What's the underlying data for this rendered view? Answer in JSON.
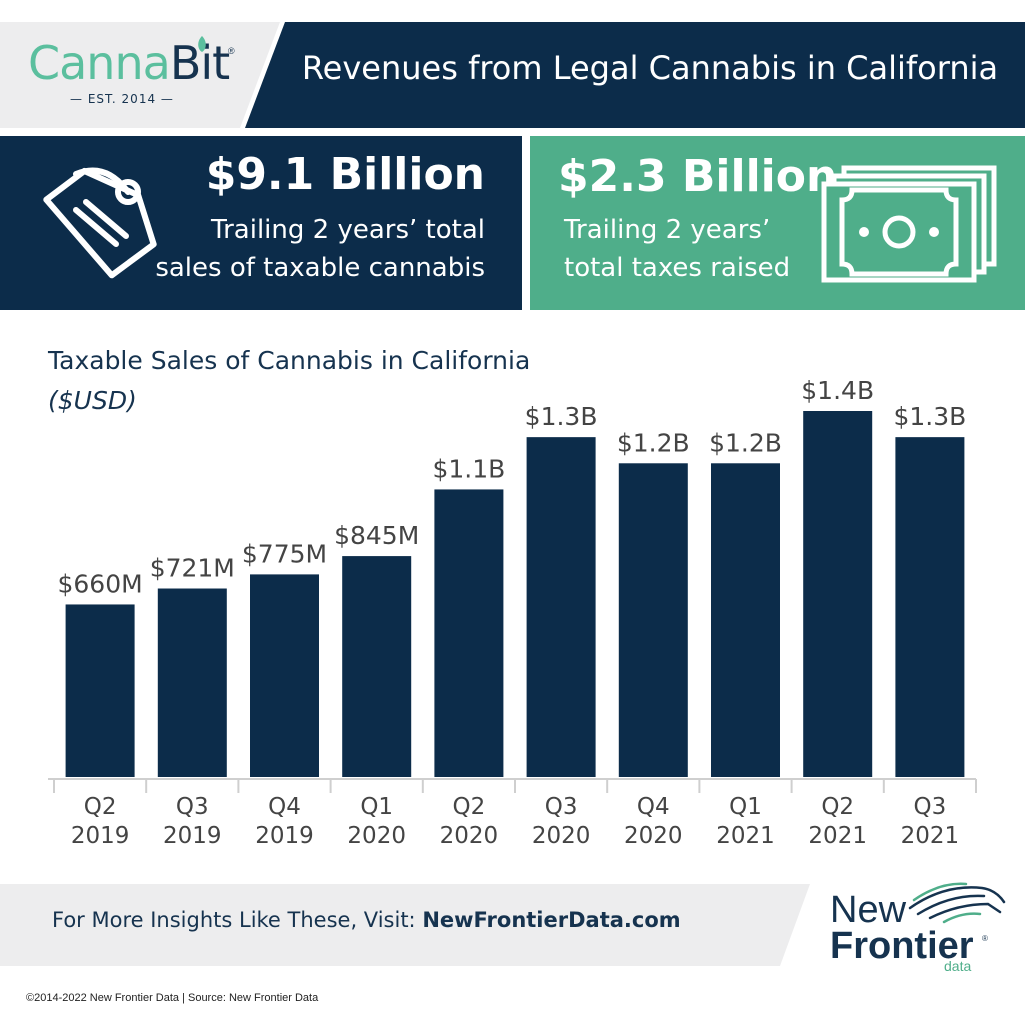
{
  "header": {
    "logo_part1": "Canna",
    "logo_part2": "Bit",
    "logo_reg": "®",
    "logo_est": "— EST. 2014 —",
    "title": "Revenues from Legal Cannabis in California"
  },
  "stats": {
    "sales": {
      "value": "$9.1 Billion",
      "line1": "Trailing 2 years’ total",
      "line2": "sales of taxable cannabis",
      "icon": "price-tag-icon"
    },
    "taxes": {
      "value": "$2.3 Billion",
      "line1": "Trailing 2 years’",
      "line2": "total taxes raised",
      "icon": "banknote-icon"
    }
  },
  "chart_data": {
    "type": "bar",
    "title": "Taxable Sales of Cannabis in California",
    "subtitle": "($USD)",
    "categories": [
      [
        "Q2",
        "2019"
      ],
      [
        "Q3",
        "2019"
      ],
      [
        "Q4",
        "2019"
      ],
      [
        "Q1",
        "2020"
      ],
      [
        "Q2",
        "2020"
      ],
      [
        "Q3",
        "2020"
      ],
      [
        "Q4",
        "2020"
      ],
      [
        "Q1",
        "2021"
      ],
      [
        "Q2",
        "2021"
      ],
      [
        "Q3",
        "2021"
      ]
    ],
    "values": [
      660,
      721,
      775,
      845,
      1100,
      1300,
      1200,
      1200,
      1400,
      1300
    ],
    "value_labels": [
      "$660M",
      "$721M",
      "$775M",
      "$845M",
      "$1.1B",
      "$1.3B",
      "$1.2B",
      "$1.2B",
      "$1.4B",
      "$1.3B"
    ],
    "unit": "USD millions",
    "ylim": [
      0,
      1400
    ],
    "grid": false,
    "bar_color": "#0c2c4a"
  },
  "footer": {
    "cta_text": "For More Insights Like These, Visit: ",
    "cta_link": "NewFrontierData.com",
    "brand_new": "New",
    "brand_frontier": "Frontier",
    "brand_reg": "®",
    "brand_data": "data",
    "copyright": "©2014-2022  New Frontier Data | Source: New Frontier Data"
  },
  "colors": {
    "navy": "#0c2c4a",
    "green": "#4fae8a",
    "light_gray": "#ededee"
  }
}
